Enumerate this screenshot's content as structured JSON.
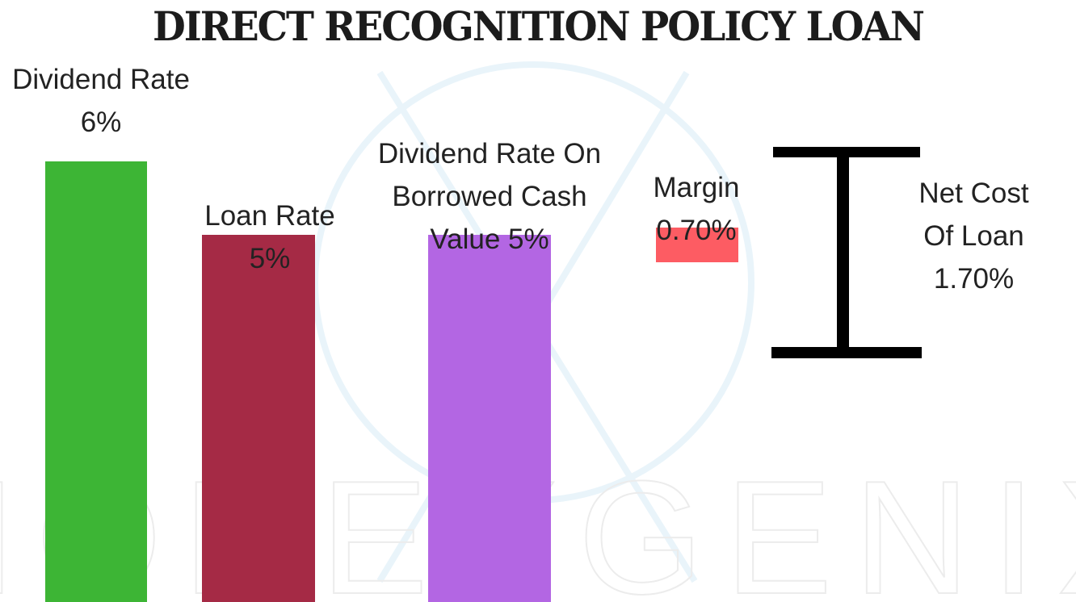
{
  "chart_data": {
    "type": "bar",
    "title": "DIRECT RECOGNITION POLICY LOAN",
    "ylim": [
      0,
      6
    ],
    "bars": [
      {
        "label_lines": [
          "Dividend Rate",
          "6%"
        ],
        "value": 6,
        "color": "#3db535"
      },
      {
        "label_lines": [
          "Loan Rate",
          "5%"
        ],
        "value": 5,
        "color": "#a52a45"
      },
      {
        "label_lines": [
          "Dividend Rate On",
          "Borrowed Cash",
          "Value 5%"
        ],
        "value": 5,
        "color": "#b366e3"
      },
      {
        "label_lines": [
          "Margin",
          "0.70%"
        ],
        "value": 0.7,
        "color": "#fd5c63",
        "floating_top": 5
      }
    ],
    "net_cost": {
      "label_lines": [
        "Net Cost",
        "Of Loan",
        "1.70%"
      ],
      "value": 1.7
    }
  },
  "watermark": {
    "text": "MONEYGENIX"
  }
}
